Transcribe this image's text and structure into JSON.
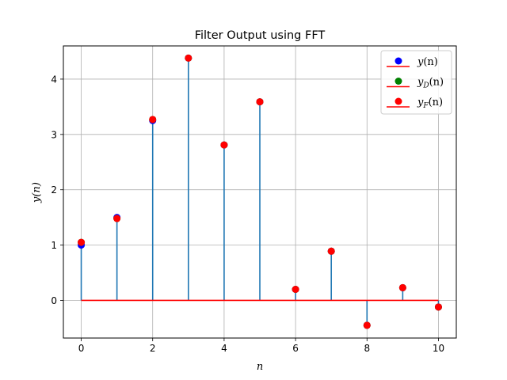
{
  "chart_data": {
    "type": "stem",
    "title": "Filter Output using FFT",
    "xlabel": "n",
    "ylabel": "y(n)",
    "xlim": [
      -0.5,
      10.5
    ],
    "ylim": [
      -0.68,
      4.6
    ],
    "xticks": [
      0,
      2,
      4,
      6,
      8,
      10
    ],
    "yticks": [
      0,
      1,
      2,
      3,
      4
    ],
    "grid": true,
    "legend_position": "top-right",
    "baseline": 0,
    "x": [
      0,
      1,
      2,
      3,
      4,
      5,
      6,
      7,
      8,
      9,
      10
    ],
    "stem_color": "#1f77b4",
    "baseline_color": "#ff0000",
    "series": [
      {
        "legend": {
          "base": "y",
          "sub": "",
          "arg": "(n)"
        },
        "color": "#0000ff",
        "values": [
          1.0,
          1.5,
          3.25,
          4.38,
          2.81,
          3.59,
          0.2,
          0.89,
          -0.45,
          0.23,
          -0.12
        ]
      },
      {
        "legend": {
          "base": "y",
          "sub": "D",
          "arg": "(n)"
        },
        "color": "#008000",
        "values": [
          1.05,
          1.48,
          3.27,
          4.38,
          2.81,
          3.59,
          0.2,
          0.89,
          -0.45,
          0.23,
          -0.12
        ]
      },
      {
        "legend": {
          "base": "y",
          "sub": "F",
          "arg": "(n)"
        },
        "color": "#ff0000",
        "values": [
          1.05,
          1.48,
          3.27,
          4.38,
          2.81,
          3.59,
          0.2,
          0.89,
          -0.45,
          0.23,
          -0.12
        ]
      }
    ]
  }
}
